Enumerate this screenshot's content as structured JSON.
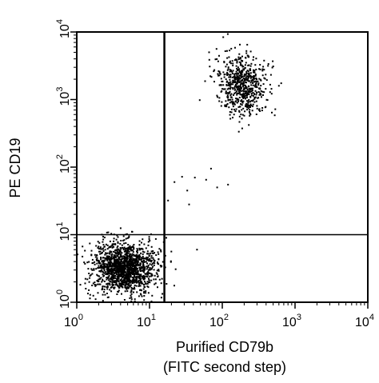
{
  "chart_data": {
    "type": "scatter",
    "xscale": "log",
    "yscale": "log",
    "xlim": [
      1,
      10000
    ],
    "ylim": [
      1,
      10000
    ],
    "xlabel": [
      "Purified CD79b",
      "(FITC second step)"
    ],
    "ylabel": "PE CD19",
    "xticks": [
      {
        "value": 1,
        "base": "10",
        "exp": "0"
      },
      {
        "value": 10,
        "base": "10",
        "exp": "1"
      },
      {
        "value": 100,
        "base": "10",
        "exp": "2"
      },
      {
        "value": 1000,
        "base": "10",
        "exp": "3"
      },
      {
        "value": 10000,
        "base": "10",
        "exp": "4"
      }
    ],
    "yticks": [
      {
        "value": 1,
        "base": "10",
        "exp": "0"
      },
      {
        "value": 10,
        "base": "10",
        "exp": "1"
      },
      {
        "value": 100,
        "base": "10",
        "exp": "2"
      },
      {
        "value": 1000,
        "base": "10",
        "exp": "3"
      },
      {
        "value": 10000,
        "base": "10",
        "exp": "4"
      }
    ],
    "quadrant_gates": {
      "x": 16,
      "y": 10
    },
    "grid": false,
    "populations": [
      {
        "x_center": 4.5,
        "y_center": 3.2,
        "count": 1500,
        "x_spread_log": 0.22,
        "y_spread_log": 0.19
      },
      {
        "x_center": 190,
        "y_center": 1600,
        "count": 650,
        "x_spread_log": 0.17,
        "y_spread_log": 0.22
      }
    ],
    "points": [
      [
        28,
        72
      ],
      [
        42,
        70
      ],
      [
        22,
        60
      ],
      [
        33,
        45
      ],
      [
        35,
        28
      ],
      [
        18,
        32
      ],
      [
        60,
        65
      ],
      [
        70,
        95
      ],
      [
        120,
        55
      ],
      [
        85,
        50
      ],
      [
        45,
        6
      ],
      [
        17,
        9
      ],
      [
        600,
        1600
      ],
      [
        110,
        5200
      ],
      [
        320,
        700
      ]
    ],
    "color": "#000000"
  }
}
